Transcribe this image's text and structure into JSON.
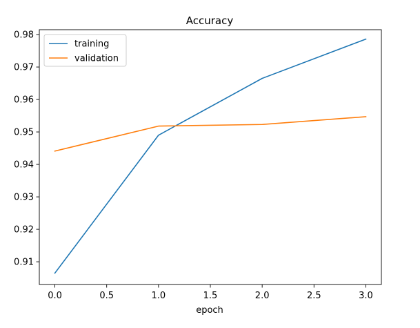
{
  "chart_data": {
    "type": "line",
    "title": "Accuracy",
    "xlabel": "epoch",
    "ylabel": "",
    "xlim": [
      -0.15,
      3.15
    ],
    "ylim": [
      0.903,
      0.9815
    ],
    "xticks": [
      0.0,
      0.5,
      1.0,
      1.5,
      2.0,
      2.5,
      3.0
    ],
    "xtick_labels": [
      "0.0",
      "0.5",
      "1.0",
      "1.5",
      "2.0",
      "2.5",
      "3.0"
    ],
    "yticks": [
      0.91,
      0.92,
      0.93,
      0.94,
      0.95,
      0.96,
      0.97,
      0.98
    ],
    "ytick_labels": [
      "0.91",
      "0.92",
      "0.93",
      "0.94",
      "0.95",
      "0.96",
      "0.97",
      "0.98"
    ],
    "grid": false,
    "legend_position": "top-left",
    "x": [
      0,
      1,
      2,
      3
    ],
    "series": [
      {
        "name": "training",
        "color": "#1f77b4",
        "values": [
          0.9065,
          0.949,
          0.9665,
          0.9786
        ]
      },
      {
        "name": "validation",
        "color": "#ff7f0e",
        "values": [
          0.9441,
          0.9518,
          0.9523,
          0.9547
        ]
      }
    ]
  }
}
